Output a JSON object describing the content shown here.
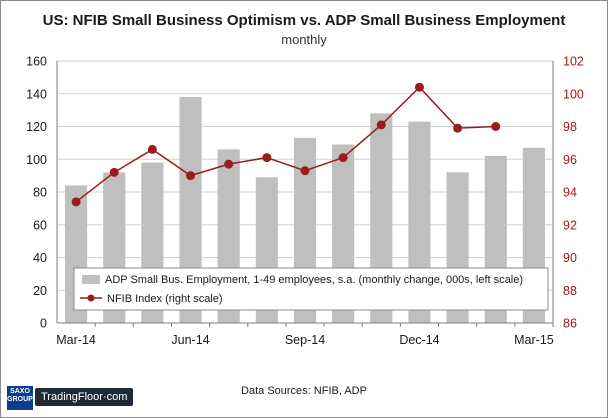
{
  "chart_data": {
    "type": "bar+line",
    "title": "US: NFIB Small Business Optimism vs. ADP Small Business Employment",
    "subtitle": "monthly",
    "x_tick_labels": [
      "Mar-14",
      "Jun-14",
      "Sep-14",
      "Dec-14",
      "Mar-15"
    ],
    "categories": [
      "Mar-14",
      "Apr-14",
      "May-14",
      "Jun-14",
      "Jul-14",
      "Aug-14",
      "Sep-14",
      "Oct-14",
      "Nov-14",
      "Dec-14",
      "Jan-15",
      "Feb-15",
      "Mar-15"
    ],
    "series": [
      {
        "name": "ADP Small Bus. Employment, 1-49 employees, s.a. (monthly change, 000s, left scale)",
        "type": "bar",
        "axis": "left",
        "color": "#bfbfbf",
        "values": [
          84,
          92,
          98,
          138,
          106,
          89,
          113,
          109,
          128,
          123,
          92,
          102,
          107
        ]
      },
      {
        "name": "NFIB Index (right scale)",
        "type": "line",
        "axis": "right",
        "color": "#9b1c1c",
        "values": [
          93.4,
          95.2,
          96.6,
          95.0,
          95.7,
          96.1,
          95.3,
          96.1,
          98.1,
          100.4,
          97.9,
          98.0,
          null
        ]
      }
    ],
    "left_axis": {
      "min": 0,
      "max": 160,
      "ticks": [
        "0",
        "20",
        "40",
        "60",
        "80",
        "100",
        "120",
        "140",
        "160"
      ]
    },
    "right_axis": {
      "min": 86,
      "max": 102,
      "ticks": [
        "86",
        "88",
        "90",
        "92",
        "94",
        "96",
        "98",
        "100",
        "102"
      ]
    },
    "grid": true,
    "legend_position": "bottom-center inside plot"
  },
  "footer": {
    "sources": "Data Sources: NFIB, ADP",
    "logo_saxo": "SAXO GROUP",
    "logo_tf": "TradingFloor·com"
  }
}
